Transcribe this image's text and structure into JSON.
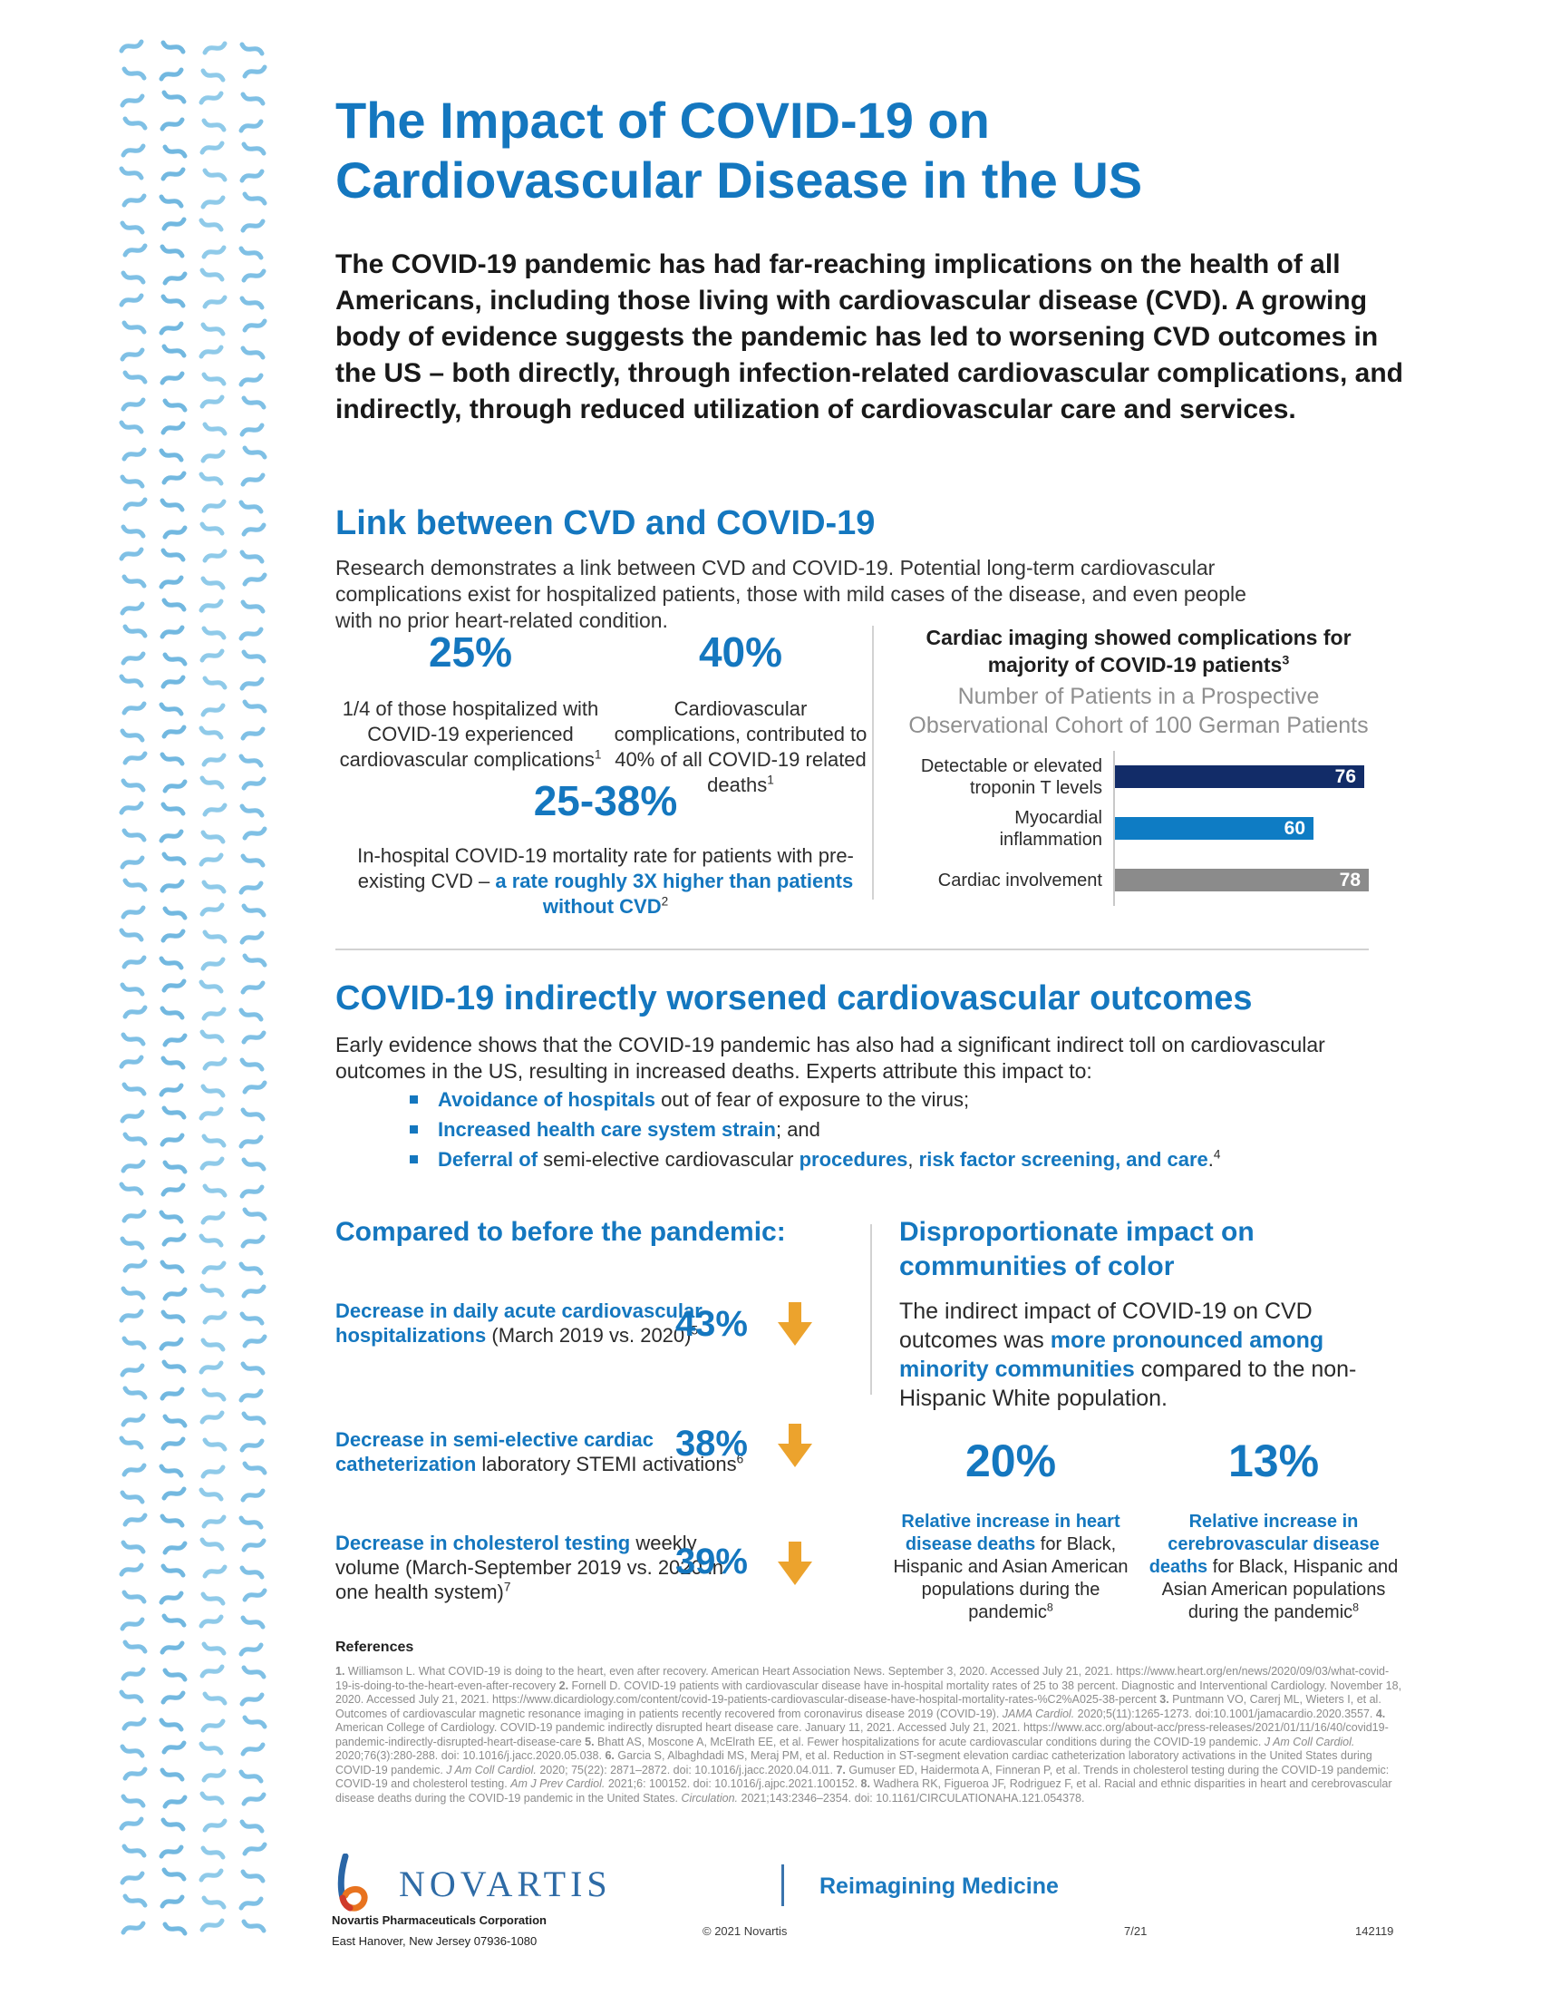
{
  "colors": {
    "accent_blue": "#1477bf",
    "bar_navy": "#122c68",
    "bar_blue": "#0e7cc4",
    "bar_gray": "#8b8b8b",
    "arrow_orange": "#eca32d",
    "pattern_blues": [
      "#7fc0e5",
      "#8fcae9",
      "#72b8e0"
    ]
  },
  "header": {
    "title": "The Impact of COVID-19 on Cardiovascular Disease in the US",
    "intro": "The COVID-19 pandemic has had far-reaching implications on the health of all Americans, including those living with cardiovascular disease (CVD). A growing body of evidence suggests the pandemic has led to worsening CVD outcomes in the US – both directly, through infection-related cardiovascular complications, and indirectly, through reduced utilization of cardiovascular care and services."
  },
  "link_section": {
    "heading": "Link between CVD and COVID-19",
    "body": "Research demonstrates a link between CVD and COVID-19. Potential long-term cardiovascular complications exist for hospitalized patients, those with mild cases of the disease, and even people with no prior heart-related condition.",
    "stats": [
      {
        "value": "25%",
        "desc_rich": [
          {
            "t": "1/4 of those hospitalized with COVID-19 experienced cardiovascular complications"
          },
          {
            "t": "1",
            "s": "sup"
          }
        ]
      },
      {
        "value": "40%",
        "desc_rich": [
          {
            "t": "Cardiovascular complications, contributed to 40% of all COVID-19 related deaths"
          },
          {
            "t": "1",
            "s": "sup"
          }
        ]
      }
    ],
    "mortality": {
      "value": "25-38%",
      "desc_rich": [
        {
          "t": "In-hospital COVID-19 mortality rate for patients with pre-existing CVD – "
        },
        {
          "t": "a rate roughly 3X higher than patients without CVD",
          "s": "bb"
        },
        {
          "t": "2",
          "s": "sup"
        }
      ]
    }
  },
  "chart_data": {
    "type": "bar",
    "orientation": "horizontal",
    "title": "Cardiac imaging showed complications for majority of COVID-19 patients³",
    "title_rich": [
      {
        "t": "Cardiac imaging showed complications for majority of COVID-19 patients",
        "s": "b"
      },
      {
        "t": "3",
        "s": "sup b"
      }
    ],
    "subtitle": "Number of Patients in a Prospective Observational Cohort of 100 German Patients",
    "categories": [
      "Detectable or elevated troponin T levels",
      "Myocardial inflammation",
      "Cardiac involvement"
    ],
    "categories_display": [
      "Detectable or elevated\ntroponin T levels",
      "Myocardial\ninflammation",
      "Cardiac involvement"
    ],
    "values": [
      76,
      60,
      78
    ],
    "colors": [
      "#122c68",
      "#0e7cc4",
      "#8b8b8b"
    ],
    "xlim": [
      0,
      80
    ],
    "grid": false,
    "legend": "none",
    "value_labels": "inside-end"
  },
  "indirect_section": {
    "heading": "COVID-19 indirectly worsened cardiovascular outcomes",
    "intro": "Early evidence shows that the COVID-19 pandemic has also had a significant indirect toll on cardiovascular outcomes in the US, resulting in increased deaths. Experts attribute this impact to:",
    "bullets": [
      [
        {
          "t": "Avoidance of hospitals",
          "s": "bb"
        },
        {
          "t": " out of fear of exposure to the virus;"
        }
      ],
      [
        {
          "t": "Increased health care system strain",
          "s": "bb"
        },
        {
          "t": "; and"
        }
      ],
      [
        {
          "t": "Deferral of",
          "s": "bb"
        },
        {
          "t": " semi-elective cardiovascular "
        },
        {
          "t": "procedures",
          "s": "bb"
        },
        {
          "t": ", "
        },
        {
          "t": "risk factor screening, and care",
          "s": "bb"
        },
        {
          "t": "."
        },
        {
          "t": "4",
          "s": "sup"
        }
      ]
    ]
  },
  "compared_section": {
    "heading": "Compared to before the pandemic:",
    "rows": [
      {
        "value": "43%",
        "label_rich": [
          {
            "t": "Decrease in daily acute cardiovascular hospitalizations",
            "s": "bb"
          },
          {
            "t": " (March 2019 vs. 2020)"
          },
          {
            "t": "5",
            "s": "sup"
          }
        ]
      },
      {
        "value": "38%",
        "label_rich": [
          {
            "t": "Decrease in semi-elective cardiac catheterization",
            "s": "bb"
          },
          {
            "t": " laboratory STEMI activations"
          },
          {
            "t": "6",
            "s": "sup"
          }
        ]
      },
      {
        "value": "39%",
        "label_rich": [
          {
            "t": "Decrease in cholesterol testing",
            "s": "bb"
          },
          {
            "t": " weekly volume (March-September 2019 vs. 2020 in one health system)"
          },
          {
            "t": "7",
            "s": "sup"
          }
        ]
      }
    ]
  },
  "disparity_section": {
    "heading": "Disproportionate impact on communities of color",
    "body_rich": [
      {
        "t": "The indirect impact of COVID-19 on CVD outcomes was "
      },
      {
        "t": "more pronounced among minority communities",
        "s": "bb"
      },
      {
        "t": " compared to the non-Hispanic White population."
      }
    ],
    "stats": [
      {
        "value": "20%",
        "desc_rich": [
          {
            "t": "Relative increase in heart disease deaths",
            "s": "bb"
          },
          {
            "t": " for Black, Hispanic and Asian American populations during the pandemic"
          },
          {
            "t": "8",
            "s": "sup"
          }
        ]
      },
      {
        "value": "13%",
        "desc_rich": [
          {
            "t": "Relative increase in cerebrovascular disease deaths",
            "s": "bb"
          },
          {
            "t": " for Black, Hispanic and Asian American populations during the pandemic"
          },
          {
            "t": "8",
            "s": "sup"
          }
        ]
      }
    ]
  },
  "references": {
    "heading": "References",
    "items_rich": [
      {
        "t": "1.",
        "s": "b"
      },
      {
        "t": " Williamson L. What COVID-19 is doing to the heart, even after recovery. American Heart Association News. September 3, 2020. Accessed July 21, 2021. https://www.heart.org/en/news/2020/09/03/what-covid-19-is-doing-to-the-heart-even-after-recovery "
      },
      {
        "t": "2.",
        "s": "b"
      },
      {
        "t": " Fornell D. COVID-19 patients with cardiovascular disease have in-hospital mortality rates of 25 to 38 percent. Diagnostic and Interventional Cardiology. November 18, 2020. Accessed July 21, 2021. https://www.dicardiology.com/content/covid-19-patients-cardiovascular-disease-have-hospital-mortality-rates-%C2%A025-38-percent "
      },
      {
        "t": "3.",
        "s": "b"
      },
      {
        "t": " Puntmann VO, Carerj ML, Wieters I, et al. Outcomes of cardiovascular magnetic resonance imaging in patients recently recovered from coronavirus disease 2019 (COVID-19). "
      },
      {
        "t": "JAMA Cardiol.",
        "s": "i"
      },
      {
        "t": " 2020;5(11):1265-1273. doi:10.1001/jamacardio.2020.3557. "
      },
      {
        "t": "4.",
        "s": "b"
      },
      {
        "t": " American College of Cardiology. COVID-19 pandemic indirectly disrupted heart disease care. January 11, 2021. Accessed July 21, 2021. https://www.acc.org/about-acc/press-releases/2021/01/11/16/40/covid19-pandemic-indirectly-disrupted-heart-disease-care "
      },
      {
        "t": "5.",
        "s": "b"
      },
      {
        "t": " Bhatt AS, Moscone A, McElrath EE, et al. Fewer hospitalizations for acute cardiovascular conditions during the COVID-19 pandemic. "
      },
      {
        "t": "J Am Coll Cardiol.",
        "s": "i"
      },
      {
        "t": " 2020;76(3):280-288. doi: 10.1016/j.jacc.2020.05.038. "
      },
      {
        "t": "6.",
        "s": "b"
      },
      {
        "t": " Garcia S, Albaghdadi MS, Meraj PM, et al. Reduction in ST-segment elevation cardiac catheterization laboratory activations in the United States during COVID-19 pandemic. "
      },
      {
        "t": "J Am Coll Cardiol.",
        "s": "i"
      },
      {
        "t": " 2020; 75(22): 2871–2872. doi: 10.1016/j.jacc.2020.04.011. "
      },
      {
        "t": "7.",
        "s": "b"
      },
      {
        "t": " Gumuser ED, Haidermota A, Finneran P, et al. Trends in cholesterol testing during the COVID-19 pandemic: COVID-19 and cholesterol testing. "
      },
      {
        "t": "Am J Prev Cardiol.",
        "s": "i"
      },
      {
        "t": " 2021;6: 100152. doi: 10.1016/j.ajpc.2021.100152. "
      },
      {
        "t": "8.",
        "s": "b"
      },
      {
        "t": " Wadhera RK, Figueroa JF, Rodriguez F, et al. Racial and ethnic disparities in heart and cerebrovascular disease deaths during the COVID-19 pandemic in the United States. "
      },
      {
        "t": "Circulation.",
        "s": "i"
      },
      {
        "t": " 2021;143:2346–2354. doi: 10.1161/CIRCULATIONAHA.121.054378."
      }
    ]
  },
  "footer": {
    "wordmark": "NOVARTIS",
    "tagline": "Reimagining Medicine",
    "address_line1": "Novartis Pharmaceuticals Corporation",
    "address_line2": "East Hanover, New Jersey 07936-1080",
    "copyright": "© 2021 Novartis",
    "date_code": "7/21",
    "job_code": "142119"
  }
}
